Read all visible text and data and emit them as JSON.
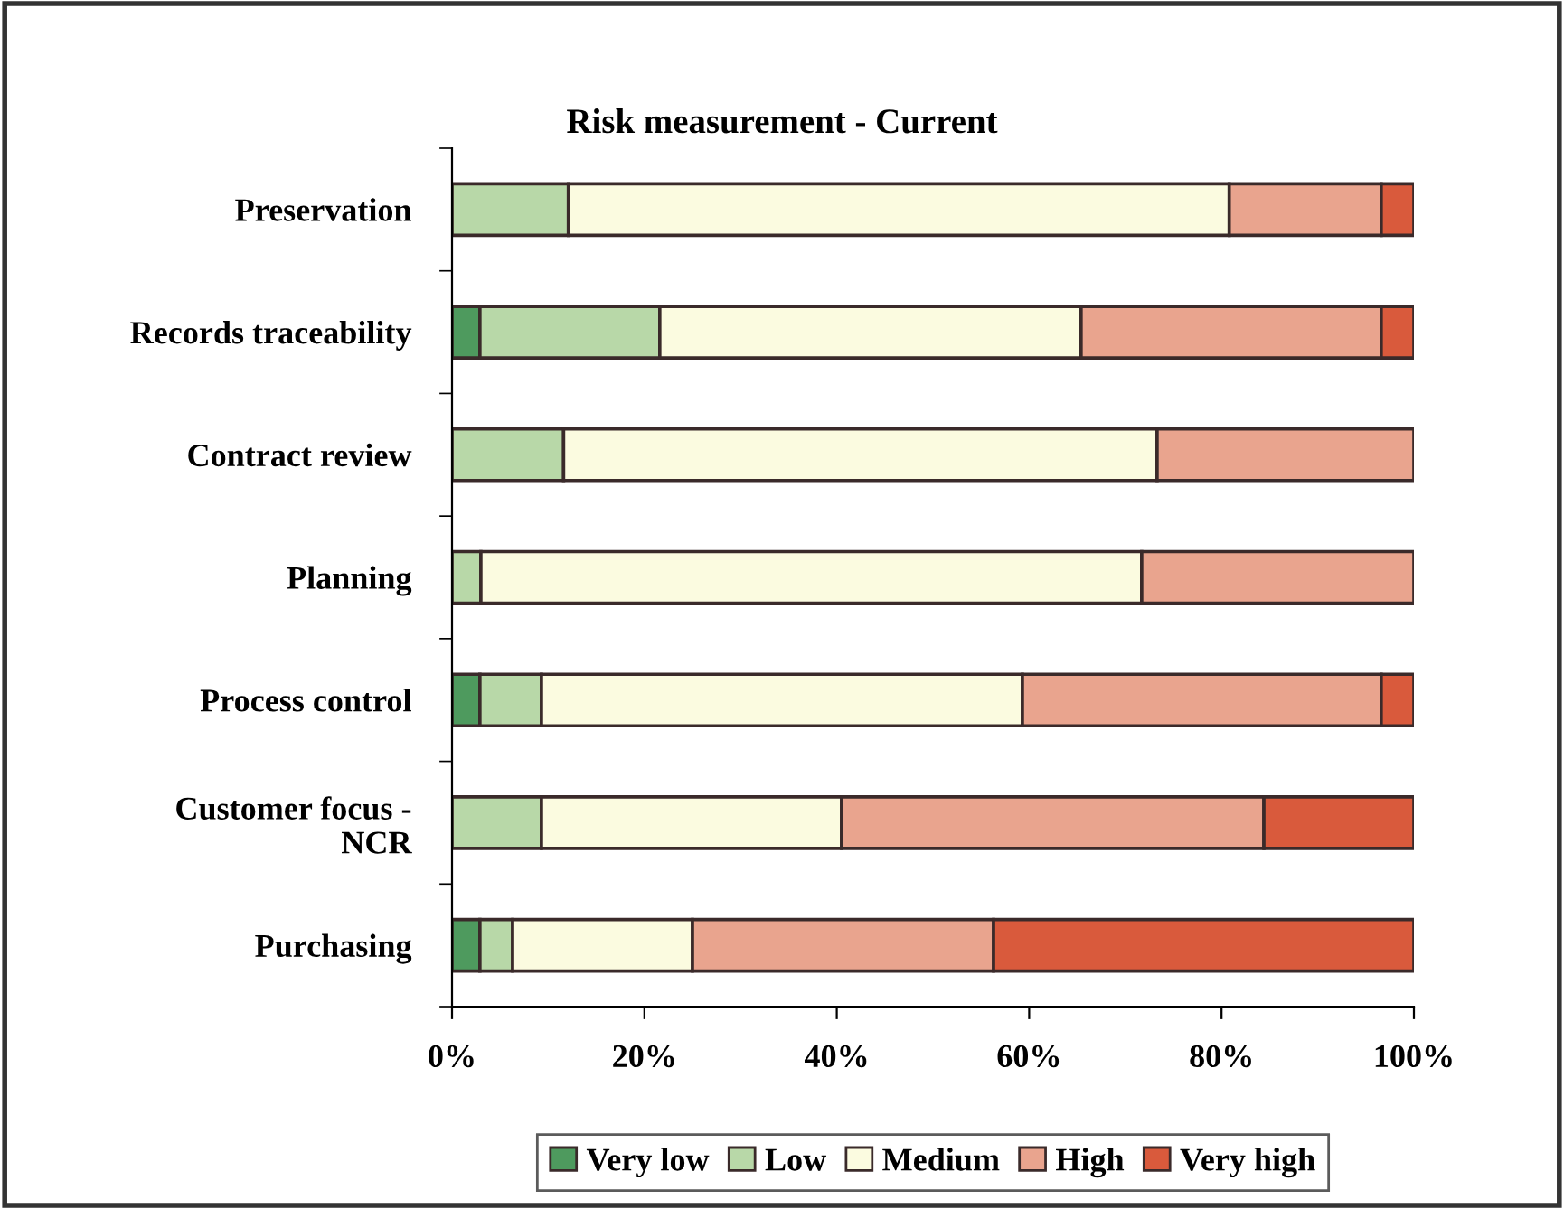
{
  "chart_data": {
    "type": "bar",
    "orientation": "horizontal",
    "stacked": true,
    "title": "Risk measurement - Current",
    "categories": [
      "Preservation",
      "Records traceability",
      "Contract review",
      "Planning",
      "Process control",
      "Customer focus -\nNCR",
      "Purchasing"
    ],
    "series": [
      {
        "name": "Very low",
        "color": "#4e9a5e",
        "values": [
          0,
          2.9,
          0,
          0,
          2.9,
          0,
          2.9
        ]
      },
      {
        "name": "Low",
        "color": "#b8d8a8",
        "values": [
          12.1,
          18.7,
          11.6,
          3.0,
          6.4,
          9.3,
          3.4
        ]
      },
      {
        "name": "Medium",
        "color": "#fbfbe0",
        "values": [
          68.7,
          43.8,
          61.7,
          68.7,
          50.0,
          31.2,
          18.7
        ]
      },
      {
        "name": "High",
        "color": "#e9a48e",
        "values": [
          15.8,
          31.2,
          26.7,
          28.3,
          37.3,
          43.9,
          31.3
        ]
      },
      {
        "name": "Very high",
        "color": "#d95a3c",
        "values": [
          3.4,
          3.4,
          0,
          0,
          3.4,
          15.6,
          43.7
        ]
      }
    ],
    "xlim": [
      0,
      100
    ],
    "xticks": [
      {
        "value": 0,
        "label": "0%"
      },
      {
        "value": 20,
        "label": "20%"
      },
      {
        "value": 40,
        "label": "40%"
      },
      {
        "value": 60,
        "label": "60%"
      },
      {
        "value": 80,
        "label": "80%"
      },
      {
        "value": 100,
        "label": "100%"
      }
    ],
    "grid": false,
    "legend": "bottom"
  }
}
